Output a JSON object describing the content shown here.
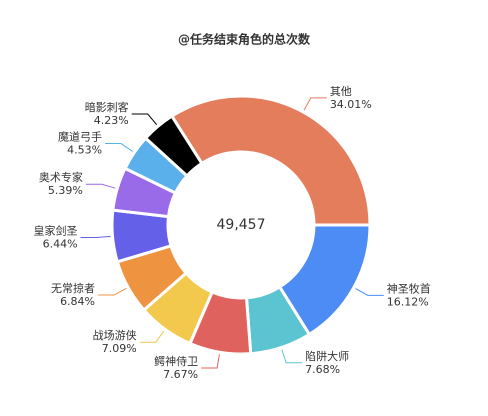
{
  "chart_data": {
    "type": "donut",
    "title": "@任务结束角色的总次数",
    "total": {
      "value": 49457,
      "label": "49,457"
    },
    "categories": [
      "其他",
      "神圣牧首",
      "陷阱大师",
      "鳄神侍卫",
      "战场游侠",
      "无常掠者",
      "皇家剑圣",
      "奥术专家",
      "魔道弓手",
      "暗影刺客"
    ],
    "values": [
      34.01,
      16.12,
      7.68,
      7.67,
      7.09,
      6.84,
      6.44,
      5.39,
      4.53,
      4.23
    ],
    "value_labels": [
      "34.01%",
      "16.12%",
      "7.68%",
      "7.67%",
      "7.09%",
      "6.84%",
      "6.44%",
      "5.39%",
      "4.53%",
      "4.23%"
    ],
    "colors": [
      "#e47d5c",
      "#4e8cf5",
      "#5cc4d0",
      "#e0625f",
      "#f2c94c",
      "#ee9340",
      "#6560e8",
      "#9a6be8",
      "#5ab0ea",
      "#000000"
    ]
  }
}
